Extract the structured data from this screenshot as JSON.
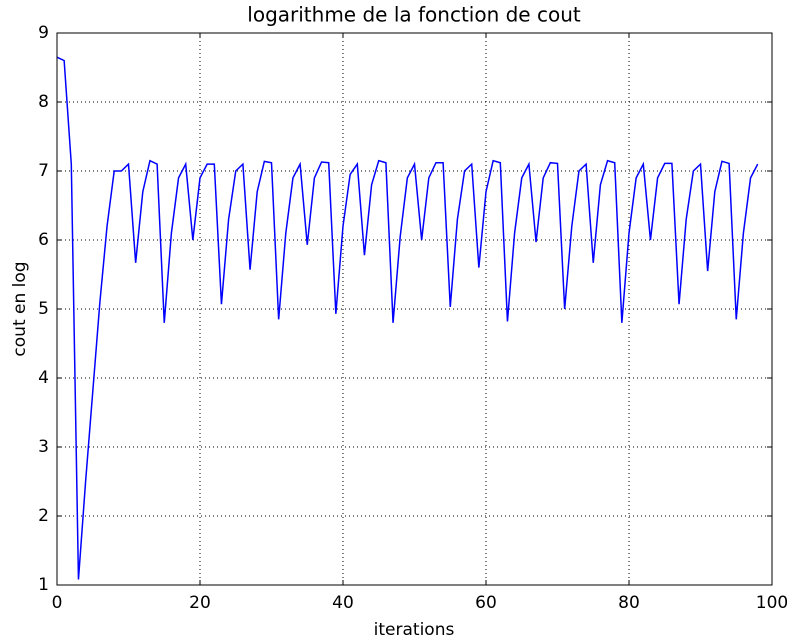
{
  "chart_data": {
    "type": "line",
    "title": "logarithme de la fonction de cout",
    "xlabel": "iterations",
    "ylabel": "cout en log",
    "x": [
      0,
      1,
      2,
      3,
      4,
      5,
      6,
      7,
      8,
      9,
      10,
      11,
      12,
      13,
      14,
      15,
      16,
      17,
      18,
      19,
      20,
      21,
      22,
      23,
      24,
      25,
      26,
      27,
      28,
      29,
      30,
      31,
      32,
      33,
      34,
      35,
      36,
      37,
      38,
      39,
      40,
      41,
      42,
      43,
      44,
      45,
      46,
      47,
      48,
      49,
      50,
      51,
      52,
      53,
      54,
      55,
      56,
      57,
      58,
      59,
      60,
      61,
      62,
      63,
      64,
      65,
      66,
      67,
      68,
      69,
      70,
      71,
      72,
      73,
      74,
      75,
      76,
      77,
      78,
      79,
      80,
      81,
      82,
      83,
      84,
      85,
      86,
      87,
      88,
      89,
      90,
      91,
      92,
      93,
      94,
      95,
      96,
      97,
      98
    ],
    "series": [
      {
        "color": "#0000ff",
        "values": [
          8.65,
          8.6,
          7.1,
          1.08,
          2.5,
          3.8,
          5.1,
          6.2,
          7.0,
          7.0,
          7.1,
          5.67,
          6.7,
          7.15,
          7.1,
          4.8,
          6.1,
          6.9,
          7.1,
          6.0,
          6.9,
          7.1,
          7.1,
          5.07,
          6.3,
          7.0,
          7.1,
          5.57,
          6.7,
          7.14,
          7.12,
          4.85,
          6.1,
          6.9,
          7.1,
          5.93,
          6.9,
          7.13,
          7.12,
          4.93,
          6.2,
          6.95,
          7.1,
          5.78,
          6.8,
          7.15,
          7.12,
          4.8,
          6.05,
          6.9,
          7.1,
          6.0,
          6.9,
          7.12,
          7.12,
          5.03,
          6.3,
          7.0,
          7.1,
          5.6,
          6.7,
          7.15,
          7.12,
          4.82,
          6.1,
          6.9,
          7.1,
          5.97,
          6.9,
          7.12,
          7.11,
          5.0,
          6.2,
          7.0,
          7.1,
          5.67,
          6.8,
          7.15,
          7.12,
          4.8,
          6.1,
          6.9,
          7.1,
          6.0,
          6.9,
          7.11,
          7.11,
          5.07,
          6.3,
          7.0,
          7.1,
          5.55,
          6.7,
          7.14,
          7.11,
          4.85,
          6.1,
          6.9,
          7.1
        ]
      }
    ],
    "xlim": [
      0,
      100
    ],
    "xticks": [
      0,
      20,
      40,
      60,
      80,
      100
    ],
    "ylim": [
      1,
      9
    ],
    "yticks": [
      1,
      2,
      3,
      4,
      5,
      6,
      7,
      8,
      9
    ],
    "grid": true
  }
}
